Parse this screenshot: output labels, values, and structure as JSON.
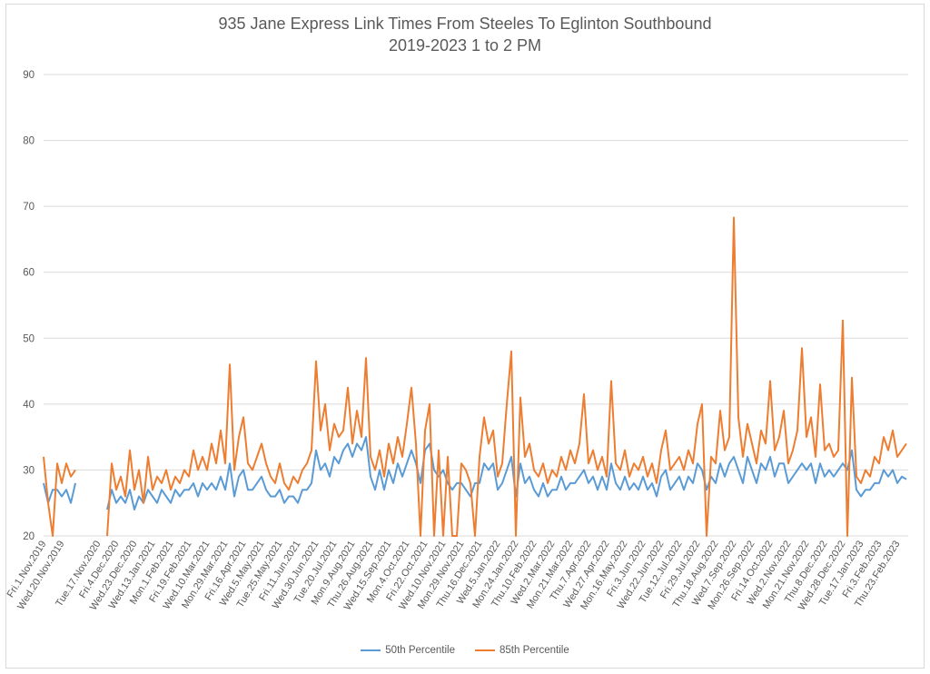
{
  "chart_data": {
    "type": "line",
    "title": "935 Jane Express Link Times From Steeles To Eglinton Southbound",
    "subtitle": "2019-2023 1 to 2 PM",
    "xlabel": "",
    "ylabel": "",
    "ylim": [
      20,
      90
    ],
    "yticks": [
      20,
      30,
      40,
      50,
      60,
      70,
      80,
      90
    ],
    "grid": true,
    "legend_position": "bottom",
    "x_tick_every": 4,
    "x_tick_labels": [
      "Fri.1.Nov.2019",
      "Wed.20.Nov.2019",
      "",
      "Tue.17.Nov.2020",
      "Fri.4.Dec.2020",
      "Wed.23.Dec.2020",
      "Wed.13.Jan.2021",
      "Mon.1.Feb.2021",
      "Fri.19.Feb.2021",
      "Wed.10.Mar.2021",
      "Mon.29.Mar.2021",
      "Fri.16.Apr.2021",
      "Wed.5.May.2021",
      "Tue.25.May.2021",
      "Fri.11.Jun.2021",
      "Wed.30.Jun.2021",
      "Tue.20.Jul.2021",
      "Mon.9.Aug.2021",
      "Thu.26.Aug.2021",
      "Wed.15.Sep.2021",
      "Mon.4.Oct.2021",
      "Fri.22.Oct.2021",
      "Wed.10.Nov.2021",
      "Mon.29.Nov.2021",
      "Thu.16.Dec.2021",
      "Wed.5.Jan.2022",
      "Mon.24.Jan.2022",
      "Thu.10.Feb.2022",
      "Wed.2.Mar.2022",
      "Mon.21.Mar.2022",
      "Thu.7.Apr.2022",
      "Wed.27.Apr.2022",
      "Mon.16.May.2022",
      "Fri.3.Jun.2022",
      "Wed.22.Jun.2022",
      "Tue.12.Jul.2022",
      "Fri.29.Jul.2022",
      "Thu.18.Aug.2022",
      "Wed.7.Sep.2022",
      "Mon.26.Sep.2022",
      "Fri.14.Oct.2022",
      "Wed.2.Nov.2022",
      "Mon.21.Nov.2022",
      "Thu.8.Dec.2022",
      "Wed.28.Dec.2022",
      "Tue.17.Jan.2023",
      "Fri.3.Feb.2023",
      "Thu.23.Feb.2023"
    ],
    "series": [
      {
        "name": "50th Percentile",
        "color": "#5B9BD5",
        "values": [
          28,
          25,
          27,
          27,
          26,
          27,
          25,
          28,
          null,
          null,
          null,
          null,
          null,
          null,
          24,
          27,
          25,
          26,
          25,
          27,
          24,
          26,
          25,
          27,
          26,
          25,
          27,
          26,
          25,
          27,
          26,
          27,
          27,
          28,
          26,
          28,
          27,
          28,
          27,
          29,
          27,
          31,
          26,
          29,
          30,
          27,
          27,
          28,
          29,
          27,
          26,
          26,
          27,
          25,
          26,
          26,
          25,
          27,
          27,
          28,
          33,
          30,
          31,
          29,
          32,
          31,
          33,
          34,
          32,
          34,
          33,
          35,
          29,
          27,
          30,
          27,
          30,
          28,
          31,
          29,
          31,
          33,
          31,
          28,
          33,
          34,
          30,
          29,
          30,
          28,
          27,
          28,
          28,
          27,
          26,
          28,
          28,
          31,
          30,
          31,
          27,
          28,
          30,
          32,
          26,
          31,
          28,
          29,
          27,
          26,
          28,
          26,
          27,
          27,
          29,
          27,
          28,
          28,
          29,
          30,
          28,
          29,
          27,
          29,
          27,
          31,
          28,
          27,
          29,
          27,
          28,
          27,
          29,
          27,
          28,
          26,
          29,
          30,
          27,
          28,
          29,
          27,
          29,
          28,
          31,
          30,
          27,
          29,
          28,
          31,
          29,
          31,
          32,
          30,
          28,
          32,
          30,
          28,
          31,
          30,
          32,
          29,
          31,
          31,
          28,
          29,
          30,
          31,
          30,
          31,
          28,
          31,
          29,
          30,
          29,
          30,
          31,
          30,
          33,
          27,
          26,
          27,
          27,
          28,
          28,
          30,
          29,
          30,
          28,
          29,
          28.6
        ]
      },
      {
        "name": "85th Percentile",
        "color": "#ED7D31",
        "values": [
          32,
          25,
          20,
          31,
          28,
          31,
          29,
          30,
          null,
          null,
          null,
          null,
          null,
          null,
          20,
          31,
          27,
          29,
          26,
          33,
          27,
          30,
          25,
          32,
          27,
          29,
          28,
          30,
          27,
          29,
          28,
          30,
          29,
          33,
          30,
          32,
          30,
          34,
          31,
          36,
          31,
          46,
          30,
          35,
          38,
          31,
          30,
          32,
          34,
          31,
          29,
          28,
          31,
          28,
          27,
          29,
          28,
          30,
          31,
          33,
          46.5,
          36,
          40,
          33,
          37,
          35,
          36,
          42.5,
          34,
          39,
          35,
          47,
          32,
          30,
          33,
          29,
          34,
          31,
          35,
          32,
          37,
          42.5,
          34,
          20,
          36,
          40,
          20,
          33,
          20,
          32,
          20,
          20,
          31,
          30,
          28,
          20,
          32,
          38,
          34,
          36,
          29,
          31,
          40,
          48,
          20,
          41,
          32,
          34,
          30,
          29,
          31,
          28,
          30,
          29,
          32,
          30,
          33,
          31,
          34,
          41.5,
          31,
          33,
          30,
          32,
          29,
          43.5,
          31,
          30,
          33,
          29,
          31,
          30,
          32,
          29,
          31,
          28,
          33,
          36,
          30,
          31,
          32,
          30,
          33,
          31,
          37,
          40,
          20,
          32,
          31,
          39,
          33,
          35,
          68.3,
          38,
          32,
          37,
          34,
          31,
          36,
          34,
          43.5,
          33,
          35,
          39,
          31,
          33,
          36,
          48.5,
          35,
          38,
          32,
          43,
          33,
          34,
          32,
          33,
          52.7,
          20,
          44,
          29,
          28,
          30,
          29,
          32,
          31,
          35,
          33,
          36,
          32,
          33,
          34
        ]
      }
    ]
  }
}
